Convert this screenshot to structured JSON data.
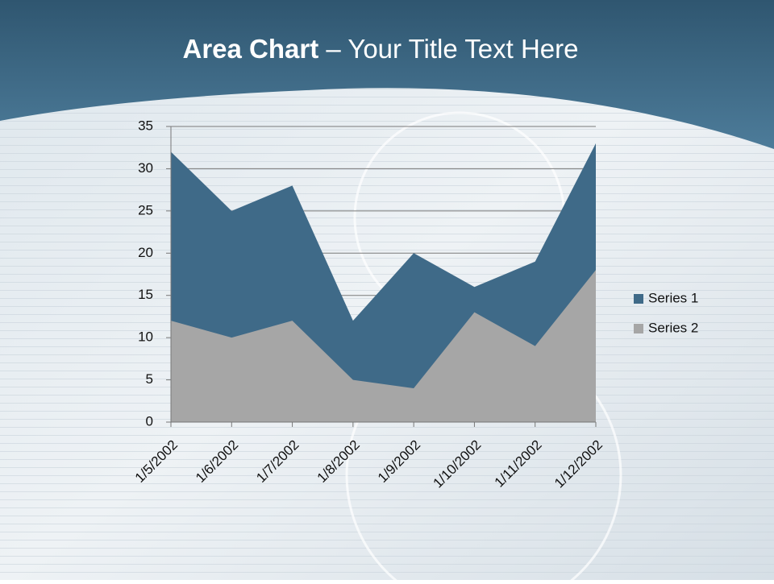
{
  "chart_data": {
    "type": "area",
    "title": {
      "bold": "Area Chart",
      "rest": "– Your Title Text Here"
    },
    "categories": [
      "1/5/2002",
      "1/6/2002",
      "1/7/2002",
      "1/8/2002",
      "1/9/2002",
      "1/10/2002",
      "1/11/2002",
      "1/12/2002"
    ],
    "series": [
      {
        "name": "Series 1",
        "color": "#3f6a88",
        "values": [
          32,
          25,
          28,
          12,
          20,
          16,
          19,
          33
        ]
      },
      {
        "name": "Series 2",
        "color": "#a6a6a6",
        "values": [
          12,
          10,
          12,
          5,
          4,
          13,
          9,
          18
        ]
      }
    ],
    "ylim": [
      0,
      35
    ],
    "yticks": [
      0,
      5,
      10,
      15,
      20,
      25,
      30,
      35
    ],
    "grid": true,
    "legend": "right"
  }
}
